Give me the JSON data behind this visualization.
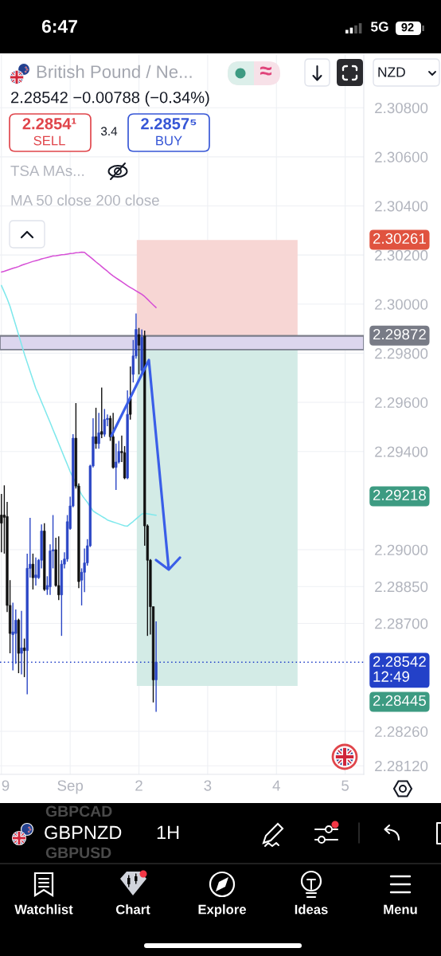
{
  "chart_data": {
    "type": "candlestick",
    "title": "British Pound / Ne...",
    "subtitle": "2.28542 −0.00788 (−0.34%)",
    "categories": [
      "9",
      null,
      null,
      null,
      null,
      null,
      null,
      null,
      null,
      null,
      null,
      null,
      null,
      null,
      null,
      null,
      null,
      null,
      null,
      null,
      null,
      null,
      null,
      null,
      "Sep",
      null,
      null,
      null,
      null,
      null,
      null,
      null,
      null,
      null,
      null,
      null,
      null,
      null,
      null,
      null,
      null,
      null,
      null,
      null,
      null,
      null,
      null,
      null,
      "2",
      null,
      null,
      null,
      null,
      null,
      null,
      null,
      null,
      null,
      null,
      null,
      null,
      null,
      null,
      null,
      null,
      null,
      null,
      null,
      null,
      null,
      null,
      null,
      "3",
      null,
      null,
      null,
      null,
      null,
      null,
      null,
      null,
      null,
      null,
      null,
      null,
      null,
      null,
      null,
      null,
      null,
      null,
      null,
      null,
      null,
      null,
      null,
      "4",
      null,
      null,
      null,
      null,
      null,
      null,
      null,
      null,
      null,
      null,
      null,
      null,
      null,
      null,
      null,
      null,
      null,
      null,
      null,
      null,
      null,
      null,
      null,
      "5",
      null,
      null,
      null,
      null,
      null,
      null
    ],
    "ohlc": [
      [
        2.29141,
        2.29227,
        2.28989,
        2.29108
      ],
      [
        2.29141,
        2.29262,
        2.28984,
        2.29132
      ],
      [
        2.29135,
        2.29195,
        2.28746,
        2.28773
      ],
      [
        2.28773,
        2.28876,
        2.28578,
        2.28659
      ],
      [
        2.28654,
        2.28784,
        2.28508,
        2.28665
      ],
      [
        2.28659,
        2.28757,
        2.28535,
        2.28713
      ],
      [
        2.28713,
        2.28719,
        2.28497,
        2.28578
      ],
      [
        2.28578,
        2.28751,
        2.28492,
        2.286
      ],
      [
        2.286,
        2.28638,
        2.28481,
        2.28589
      ],
      [
        2.28589,
        2.28984,
        2.28411,
        2.28924
      ],
      [
        2.28924,
        2.2913,
        2.28886,
        2.28941
      ],
      [
        2.28941,
        2.28984,
        2.28838,
        2.28886
      ],
      [
        2.28886,
        2.28968,
        2.28854,
        2.28897
      ],
      [
        2.28886,
        2.28962,
        2.28881,
        2.28957
      ],
      [
        2.28957,
        2.29103,
        2.28924,
        2.29076
      ],
      [
        2.29076,
        2.29108,
        2.28832,
        2.28838
      ],
      [
        2.28838,
        2.28892,
        2.28816,
        2.28854
      ],
      [
        2.28849,
        2.29022,
        2.28816,
        2.28995
      ],
      [
        2.28995,
        2.29141,
        2.28924,
        2.29
      ],
      [
        2.29,
        2.29049,
        2.28849,
        2.28854
      ],
      [
        2.28854,
        2.29054,
        2.28795,
        2.28816
      ],
      [
        2.28816,
        2.28957,
        2.28649,
        2.28941
      ],
      [
        2.28941,
        2.28989,
        2.28924,
        2.28962
      ],
      [
        2.28962,
        2.29141,
        2.28951,
        2.29114
      ],
      [
        2.29086,
        2.29216,
        2.29081,
        2.29178
      ],
      [
        2.29178,
        2.2947,
        2.29173,
        2.29454
      ],
      [
        2.29454,
        2.29597,
        2.29249,
        2.29259
      ],
      [
        2.29259,
        2.2927,
        2.28843,
        2.2887
      ],
      [
        2.28876,
        2.28924,
        2.28773,
        2.28908
      ],
      [
        2.28908,
        2.29005,
        2.28827,
        2.28946
      ],
      [
        2.28946,
        2.29043,
        2.28935,
        2.29016
      ],
      [
        2.29016,
        2.29346,
        2.29011,
        2.29341
      ],
      [
        2.29341,
        2.29535,
        2.29335,
        2.2946
      ],
      [
        2.2946,
        2.29578,
        2.29411,
        2.29432
      ],
      [
        2.29432,
        2.29557,
        2.29411,
        2.29476
      ],
      [
        2.29481,
        2.2966,
        2.29454,
        2.2947
      ],
      [
        2.2947,
        2.29573,
        2.2946,
        2.2953
      ],
      [
        2.2953,
        2.29551,
        2.29503,
        2.29535
      ],
      [
        2.29535,
        2.29546,
        2.29443,
        2.2946
      ],
      [
        2.2946,
        2.29557,
        2.2933,
        2.29335
      ],
      [
        2.29335,
        2.29432,
        2.29243,
        2.29357
      ],
      [
        2.29357,
        2.29443,
        2.29351,
        2.294
      ],
      [
        2.294,
        2.29465,
        2.29357,
        2.29395
      ],
      [
        2.29395,
        2.29422,
        2.29287,
        2.29292
      ],
      [
        2.29292,
        2.29649,
        2.29287,
        2.29551
      ],
      [
        2.29616,
        2.29746,
        2.2953,
        2.29551
      ],
      [
        2.29714,
        2.29854,
        2.29681,
        2.29789
      ],
      [
        2.29789,
        2.29962,
        2.29778,
        2.29897
      ],
      [
        2.29876,
        2.29903,
        2.29714,
        2.29833
      ],
      [
        2.2973,
        2.29897,
        2.29714,
        2.29865
      ],
      [
        2.2987,
        2.29892,
        2.29016,
        2.29097
      ],
      [
        2.29097,
        2.29103,
        2.28649,
        2.28957
      ],
      [
        2.28957,
        2.28962,
        2.28654,
        2.28768
      ],
      [
        2.28768,
        2.28768,
        2.28378,
        2.2847
      ],
      [
        2.2847,
        2.28708,
        2.2834,
        2.28542
      ],
      null,
      null,
      null,
      null,
      null,
      null,
      null,
      null,
      null,
      null,
      null,
      null,
      null,
      null,
      null,
      null,
      null,
      null,
      null,
      null,
      null,
      null,
      null,
      null,
      null,
      null,
      null,
      null,
      null,
      null,
      null,
      null,
      null,
      null,
      null,
      null,
      null,
      null,
      null,
      null,
      null,
      null,
      null,
      null,
      null,
      null,
      null,
      null,
      null,
      null,
      null,
      null,
      null,
      null,
      null,
      null,
      null,
      null,
      null,
      null,
      null,
      null,
      null,
      null,
      null,
      null,
      null,
      null,
      null,
      null,
      null,
      null
    ],
    "colors": [
      "#101010",
      "#101010",
      "#101010",
      "#101010",
      "#2a45c5",
      "#2a45c5",
      "#101010",
      "#2a45c5",
      "#101010",
      "#2a45c5",
      "#2a45c5",
      "#101010",
      "#2a45c5",
      "#2a45c5",
      "#2a45c5",
      "#101010",
      "#2a45c5",
      "#2a45c5",
      "#2a45c5",
      "#101010",
      "#101010",
      "#2a45c5",
      "#2a45c5",
      "#2a45c5",
      "#2a45c5",
      "#2a45c5",
      "#101010",
      "#101010",
      "#2a45c5",
      "#2a45c5",
      "#2a45c5",
      "#2a45c5",
      "#2a45c5",
      "#101010",
      "#2a45c5",
      "#101010",
      "#2a45c5",
      "#2a45c5",
      "#101010",
      "#101010",
      "#2a45c5",
      "#2a45c5",
      "#101010",
      "#101010",
      "#2a45c5",
      "#101010",
      "#2a45c5",
      "#2a45c5",
      "#101010",
      "#2a45c5",
      "#101010",
      "#101010",
      "#101010",
      "#101010",
      "#2a45c5",
      null,
      null,
      null,
      null,
      null,
      null,
      null,
      null,
      null,
      null,
      null,
      null,
      null,
      null,
      null,
      null,
      null,
      null,
      null,
      null,
      null,
      null,
      null,
      null,
      null,
      null,
      null,
      null,
      null,
      null,
      null,
      null,
      null,
      null,
      null,
      null,
      null,
      null,
      null,
      null,
      null,
      null,
      null,
      null,
      null,
      null,
      null,
      null,
      null,
      null,
      null,
      null,
      null,
      null,
      null,
      null,
      null,
      null,
      null,
      null,
      null,
      null,
      null,
      null,
      null,
      null,
      null,
      null,
      null,
      null,
      null,
      null
    ],
    "series": [
      {
        "type": "line",
        "color": "#d64fd6",
        "values": [
          2.30131,
          2.30134,
          2.30138,
          2.30142,
          2.30146,
          2.30149,
          2.30153,
          2.30158,
          2.30162,
          2.30166,
          2.3017,
          2.30174,
          2.30177,
          2.3018,
          2.30184,
          2.30187,
          2.3019,
          2.30193,
          2.30196,
          2.30197,
          2.30199,
          2.30201,
          2.30202,
          2.30204,
          2.30206,
          2.30207,
          2.30209,
          2.3021,
          2.30212,
          2.30211,
          2.30201,
          2.30192,
          2.30182,
          2.30172,
          2.30163,
          2.30153,
          2.30143,
          2.30134,
          2.30124,
          2.30115,
          2.30107,
          2.30099,
          2.30091,
          2.30083,
          2.30075,
          2.30068,
          2.30061,
          2.30054,
          2.30047,
          2.3004,
          2.30031,
          2.3002,
          2.30008,
          2.29997,
          2.29986,
          null,
          null,
          null,
          null,
          null,
          null,
          null,
          null,
          null,
          null,
          null,
          null,
          null,
          null,
          null,
          null,
          null,
          null,
          null,
          null,
          null,
          null,
          null,
          null,
          null,
          null,
          null,
          null,
          null,
          null,
          null,
          null,
          null,
          null,
          null,
          null,
          null,
          null,
          null,
          null,
          null,
          null,
          null,
          null,
          null,
          null,
          null,
          null,
          null,
          null,
          null,
          null,
          null,
          null,
          null,
          null,
          null,
          null,
          null,
          null,
          null,
          null,
          null,
          null,
          null,
          null,
          null,
          null,
          null,
          null,
          null,
          null
        ]
      },
      {
        "type": "line",
        "color": "#7ee8ec",
        "values": [
          2.30076,
          2.30049,
          2.30022,
          2.29991,
          2.29952,
          2.29914,
          2.29875,
          2.29836,
          2.29797,
          2.29762,
          2.29727,
          2.29692,
          2.29657,
          2.2963,
          2.29602,
          2.29574,
          2.29546,
          2.29518,
          2.29489,
          2.29461,
          2.29432,
          2.29404,
          2.29375,
          2.29347,
          2.29318,
          2.29294,
          2.29271,
          2.29247,
          2.29224,
          2.29208,
          2.29193,
          2.29175,
          2.29158,
          2.2915,
          2.29143,
          2.29136,
          2.29129,
          2.29121,
          2.29117,
          2.29113,
          2.29109,
          2.29105,
          2.29101,
          2.29097,
          2.29096,
          2.29106,
          2.29115,
          2.29125,
          2.29135,
          2.29145,
          2.29148,
          2.29146,
          2.29144,
          2.29142,
          2.2914,
          null,
          null,
          null,
          null,
          null,
          null,
          null,
          null,
          null,
          null,
          null,
          null,
          null,
          null,
          null,
          null,
          null,
          null,
          null,
          null,
          null,
          null,
          null,
          null,
          null,
          null,
          null,
          null,
          null,
          null,
          null,
          null,
          null,
          null,
          null,
          null,
          null,
          null,
          null,
          null,
          null,
          null,
          null,
          null,
          null,
          null,
          null,
          null,
          null,
          null,
          null,
          null,
          null,
          null,
          null,
          null,
          null,
          null,
          null,
          null,
          null,
          null,
          null,
          null,
          null,
          null,
          null,
          null,
          null,
          null,
          null,
          null
        ]
      }
    ],
    "ylim": [
      2.28085,
      2.31018
    ],
    "yticks": [
      {
        "value": 2.308,
        "label": "2.30800"
      },
      {
        "value": 2.306,
        "label": "2.30600"
      },
      {
        "value": 2.304,
        "label": "2.30400"
      },
      {
        "value": 2.302,
        "label": "2.30200"
      },
      {
        "value": 2.3,
        "label": "2.30000"
      },
      {
        "value": 2.298,
        "label": "2.29800"
      },
      {
        "value": 2.296,
        "label": "2.29600"
      },
      {
        "value": 2.294,
        "label": "2.29400"
      },
      {
        "value": 2.29,
        "label": "2.29000"
      },
      {
        "value": 2.2885,
        "label": "2.28850"
      },
      {
        "value": 2.287,
        "label": "2.28700"
      },
      {
        "value": 2.2826,
        "label": "2.28260"
      },
      {
        "value": 2.2812,
        "label": "2.28120"
      }
    ],
    "grid": true,
    "bands": [
      {
        "axis": "y",
        "from": 2.29872,
        "to": 2.30261,
        "color": "#f7d6d4"
      },
      {
        "axis": "y",
        "from": 2.28445,
        "to": 2.29872,
        "color": "#d3ebe6"
      },
      {
        "axis": "y",
        "from": 2.29815,
        "to": 2.2987,
        "color": "#dcd6ee"
      }
    ],
    "ref_lines": [
      {
        "axis": "y",
        "value": 2.29872,
        "label": "2.29872",
        "color": "#787b86",
        "line_style": "solid"
      },
      {
        "axis": "y",
        "value": 2.28542,
        "label": "2.28542\n12:49",
        "color": "#2341c8",
        "line_style": "dotted"
      }
    ],
    "annotations": [
      "6:47",
      "5G",
      "92",
      "≈",
      "NZD",
      "2.2854¹",
      "SELL",
      "3.4",
      "2.2857⁵",
      "BUY",
      "TSA MAs...",
      "MA 50 close 200 close",
      "GBPCAD",
      "GBPNZD",
      "GBPUSD",
      "1H",
      "Watchlist",
      "Chart",
      "Explore",
      "Ideas",
      "Menu",
      "2.30261",
      "2.29218",
      "2.28445"
    ]
  }
}
